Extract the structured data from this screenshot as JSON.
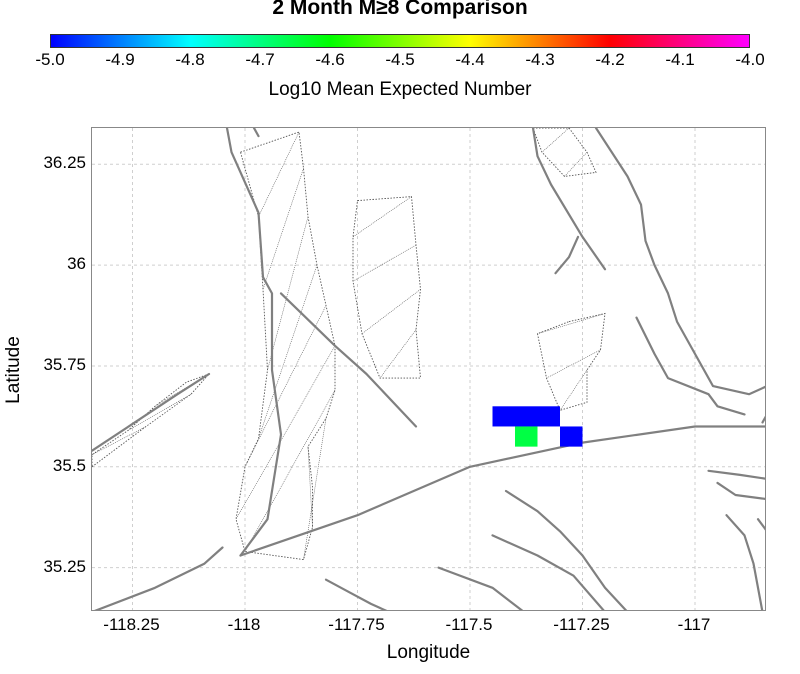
{
  "title": "2 Month M≥8 Comparison",
  "colorbar": {
    "label": "Log10 Mean Expected Number",
    "min": -5.0,
    "max": -4.0,
    "ticks": [
      "-5.0",
      "-4.9",
      "-4.8",
      "-4.7",
      "-4.6",
      "-4.5",
      "-4.4",
      "-4.3",
      "-4.2",
      "-4.1",
      "-4.0"
    ],
    "colors": [
      "#0000ff",
      "#00ffff",
      "#00ff00",
      "#ffff00",
      "#ff0000",
      "#ff00ff"
    ]
  },
  "axes": {
    "xlabel": "Longitude",
    "ylabel": "Latitude",
    "xlim": [
      -118.34,
      -116.84
    ],
    "ylim": [
      35.14,
      36.34
    ],
    "xticks": [
      {
        "value": -118.25,
        "label": "-118.25"
      },
      {
        "value": -118.0,
        "label": "-118"
      },
      {
        "value": -117.75,
        "label": "-117.75"
      },
      {
        "value": -117.5,
        "label": "-117.5"
      },
      {
        "value": -117.25,
        "label": "-117.25"
      },
      {
        "value": -117.0,
        "label": "-117"
      }
    ],
    "yticks": [
      {
        "value": 36.25,
        "label": "36.25"
      },
      {
        "value": 36.0,
        "label": "36"
      },
      {
        "value": 35.75,
        "label": "35.75"
      },
      {
        "value": 35.5,
        "label": "35.5"
      },
      {
        "value": 35.25,
        "label": "35.25"
      }
    ],
    "grid": true
  },
  "forecast_cells": [
    {
      "lon": -117.45,
      "lat": 35.6,
      "lon2": -117.3,
      "lat2": 35.65,
      "log10": -5.0,
      "color": "#0000ff"
    },
    {
      "lon": -117.4,
      "lat": 35.55,
      "lon2": -117.35,
      "lat2": 35.6,
      "log10": -4.65,
      "color": "#00ff44"
    },
    {
      "lon": -117.3,
      "lat": 35.55,
      "lon2": -117.25,
      "lat2": 35.6,
      "log10": -5.0,
      "color": "#0000ff"
    }
  ],
  "faults": [
    [
      [
        -118.04,
        36.34
      ],
      [
        -118.03,
        36.28
      ],
      [
        -117.97,
        36.13
      ],
      [
        -117.96,
        35.97
      ],
      [
        -117.94,
        35.93
      ],
      [
        -117.94,
        35.74
      ],
      [
        -117.92,
        35.58
      ],
      [
        -117.95,
        35.37
      ],
      [
        -118.01,
        35.28
      ]
    ],
    [
      [
        -117.98,
        36.34
      ],
      [
        -117.97,
        36.32
      ]
    ],
    [
      [
        -117.92,
        35.93
      ],
      [
        -117.8,
        35.8
      ],
      [
        -117.73,
        35.73
      ],
      [
        -117.62,
        35.6
      ]
    ],
    [
      [
        -118.34,
        35.54
      ],
      [
        -118.15,
        35.68
      ],
      [
        -118.08,
        35.73
      ]
    ],
    [
      [
        -118.01,
        35.28
      ],
      [
        -117.75,
        35.38
      ],
      [
        -117.5,
        35.5
      ],
      [
        -117.25,
        35.56
      ],
      [
        -117.0,
        35.6
      ],
      [
        -116.84,
        35.6
      ]
    ],
    [
      [
        -117.36,
        36.34
      ],
      [
        -117.35,
        36.27
      ],
      [
        -117.32,
        36.2
      ],
      [
        -117.25,
        36.07
      ],
      [
        -117.2,
        35.99
      ]
    ],
    [
      [
        -117.22,
        36.34
      ],
      [
        -117.15,
        36.22
      ],
      [
        -117.12,
        36.15
      ],
      [
        -117.11,
        36.06
      ],
      [
        -117.09,
        36.0
      ],
      [
        -117.06,
        35.93
      ],
      [
        -117.04,
        35.86
      ],
      [
        -117.0,
        35.78
      ],
      [
        -116.96,
        35.7
      ],
      [
        -116.88,
        35.68
      ],
      [
        -116.84,
        35.7
      ]
    ],
    [
      [
        -117.31,
        35.98
      ],
      [
        -117.28,
        36.02
      ],
      [
        -117.26,
        36.07
      ]
    ],
    [
      [
        -117.13,
        35.87
      ],
      [
        -117.09,
        35.78
      ],
      [
        -117.06,
        35.72
      ],
      [
        -116.97,
        35.68
      ],
      [
        -116.95,
        35.65
      ],
      [
        -116.89,
        35.63
      ]
    ],
    [
      [
        -116.84,
        35.63
      ],
      [
        -116.85,
        35.61
      ]
    ],
    [
      [
        -117.45,
        35.33
      ],
      [
        -117.35,
        35.28
      ],
      [
        -117.27,
        35.23
      ],
      [
        -117.2,
        35.14
      ]
    ],
    [
      [
        -117.42,
        35.44
      ],
      [
        -117.35,
        35.39
      ],
      [
        -117.3,
        35.34
      ],
      [
        -117.25,
        35.28
      ],
      [
        -117.2,
        35.2
      ],
      [
        -117.15,
        35.14
      ]
    ],
    [
      [
        -117.57,
        35.25
      ],
      [
        -117.45,
        35.2
      ],
      [
        -117.38,
        35.14
      ]
    ],
    [
      [
        -118.34,
        35.14
      ],
      [
        -118.2,
        35.2
      ],
      [
        -118.09,
        35.26
      ],
      [
        -118.05,
        35.3
      ]
    ],
    [
      [
        -117.82,
        35.22
      ],
      [
        -117.77,
        35.19
      ],
      [
        -117.72,
        35.16
      ],
      [
        -117.68,
        35.14
      ]
    ],
    [
      [
        -116.97,
        35.49
      ],
      [
        -116.9,
        35.48
      ],
      [
        -116.84,
        35.47
      ]
    ],
    [
      [
        -116.95,
        35.46
      ],
      [
        -116.91,
        35.43
      ],
      [
        -116.84,
        35.42
      ]
    ],
    [
      [
        -116.93,
        35.38
      ],
      [
        -116.89,
        35.33
      ],
      [
        -116.87,
        35.26
      ],
      [
        -116.85,
        35.14
      ]
    ],
    [
      [
        -116.86,
        35.37
      ],
      [
        -116.84,
        35.34
      ]
    ]
  ],
  "dotted_zones": [
    [
      [
        -118.01,
        36.28
      ],
      [
        -117.88,
        36.33
      ],
      [
        -117.87,
        36.24
      ],
      [
        -117.86,
        36.12
      ],
      [
        -117.84,
        36.0
      ],
      [
        -117.82,
        35.9
      ],
      [
        -117.8,
        35.8
      ],
      [
        -117.8,
        35.69
      ],
      [
        -117.82,
        35.62
      ],
      [
        -117.86,
        35.55
      ],
      [
        -117.85,
        35.45
      ],
      [
        -117.85,
        35.35
      ],
      [
        -117.87,
        35.27
      ],
      [
        -118.0,
        35.29
      ],
      [
        -118.02,
        35.37
      ],
      [
        -118.0,
        35.5
      ],
      [
        -117.97,
        35.57
      ],
      [
        -117.95,
        35.74
      ],
      [
        -117.96,
        35.94
      ],
      [
        -117.97,
        36.12
      ]
    ],
    [
      [
        -117.75,
        36.16
      ],
      [
        -117.63,
        36.17
      ],
      [
        -117.62,
        36.05
      ],
      [
        -117.61,
        35.94
      ],
      [
        -117.62,
        35.84
      ],
      [
        -117.61,
        35.72
      ],
      [
        -117.7,
        35.72
      ],
      [
        -117.74,
        35.83
      ],
      [
        -117.76,
        35.96
      ],
      [
        -117.76,
        36.07
      ]
    ],
    [
      [
        -117.28,
        35.86
      ],
      [
        -117.2,
        35.88
      ],
      [
        -117.21,
        35.79
      ],
      [
        -117.24,
        35.74
      ],
      [
        -117.24,
        35.66
      ],
      [
        -117.3,
        35.64
      ],
      [
        -117.33,
        35.72
      ],
      [
        -117.35,
        35.83
      ]
    ],
    [
      [
        -117.36,
        36.34
      ],
      [
        -117.28,
        36.34
      ],
      [
        -117.24,
        36.28
      ],
      [
        -117.22,
        36.23
      ],
      [
        -117.29,
        36.22
      ],
      [
        -117.34,
        36.28
      ]
    ],
    [
      [
        -118.34,
        35.5
      ],
      [
        -118.22,
        35.6
      ],
      [
        -118.12,
        35.68
      ],
      [
        -118.08,
        35.73
      ],
      [
        -118.13,
        35.71
      ],
      [
        -118.2,
        35.65
      ],
      [
        -118.26,
        35.59
      ],
      [
        -118.34,
        35.53
      ]
    ]
  ]
}
